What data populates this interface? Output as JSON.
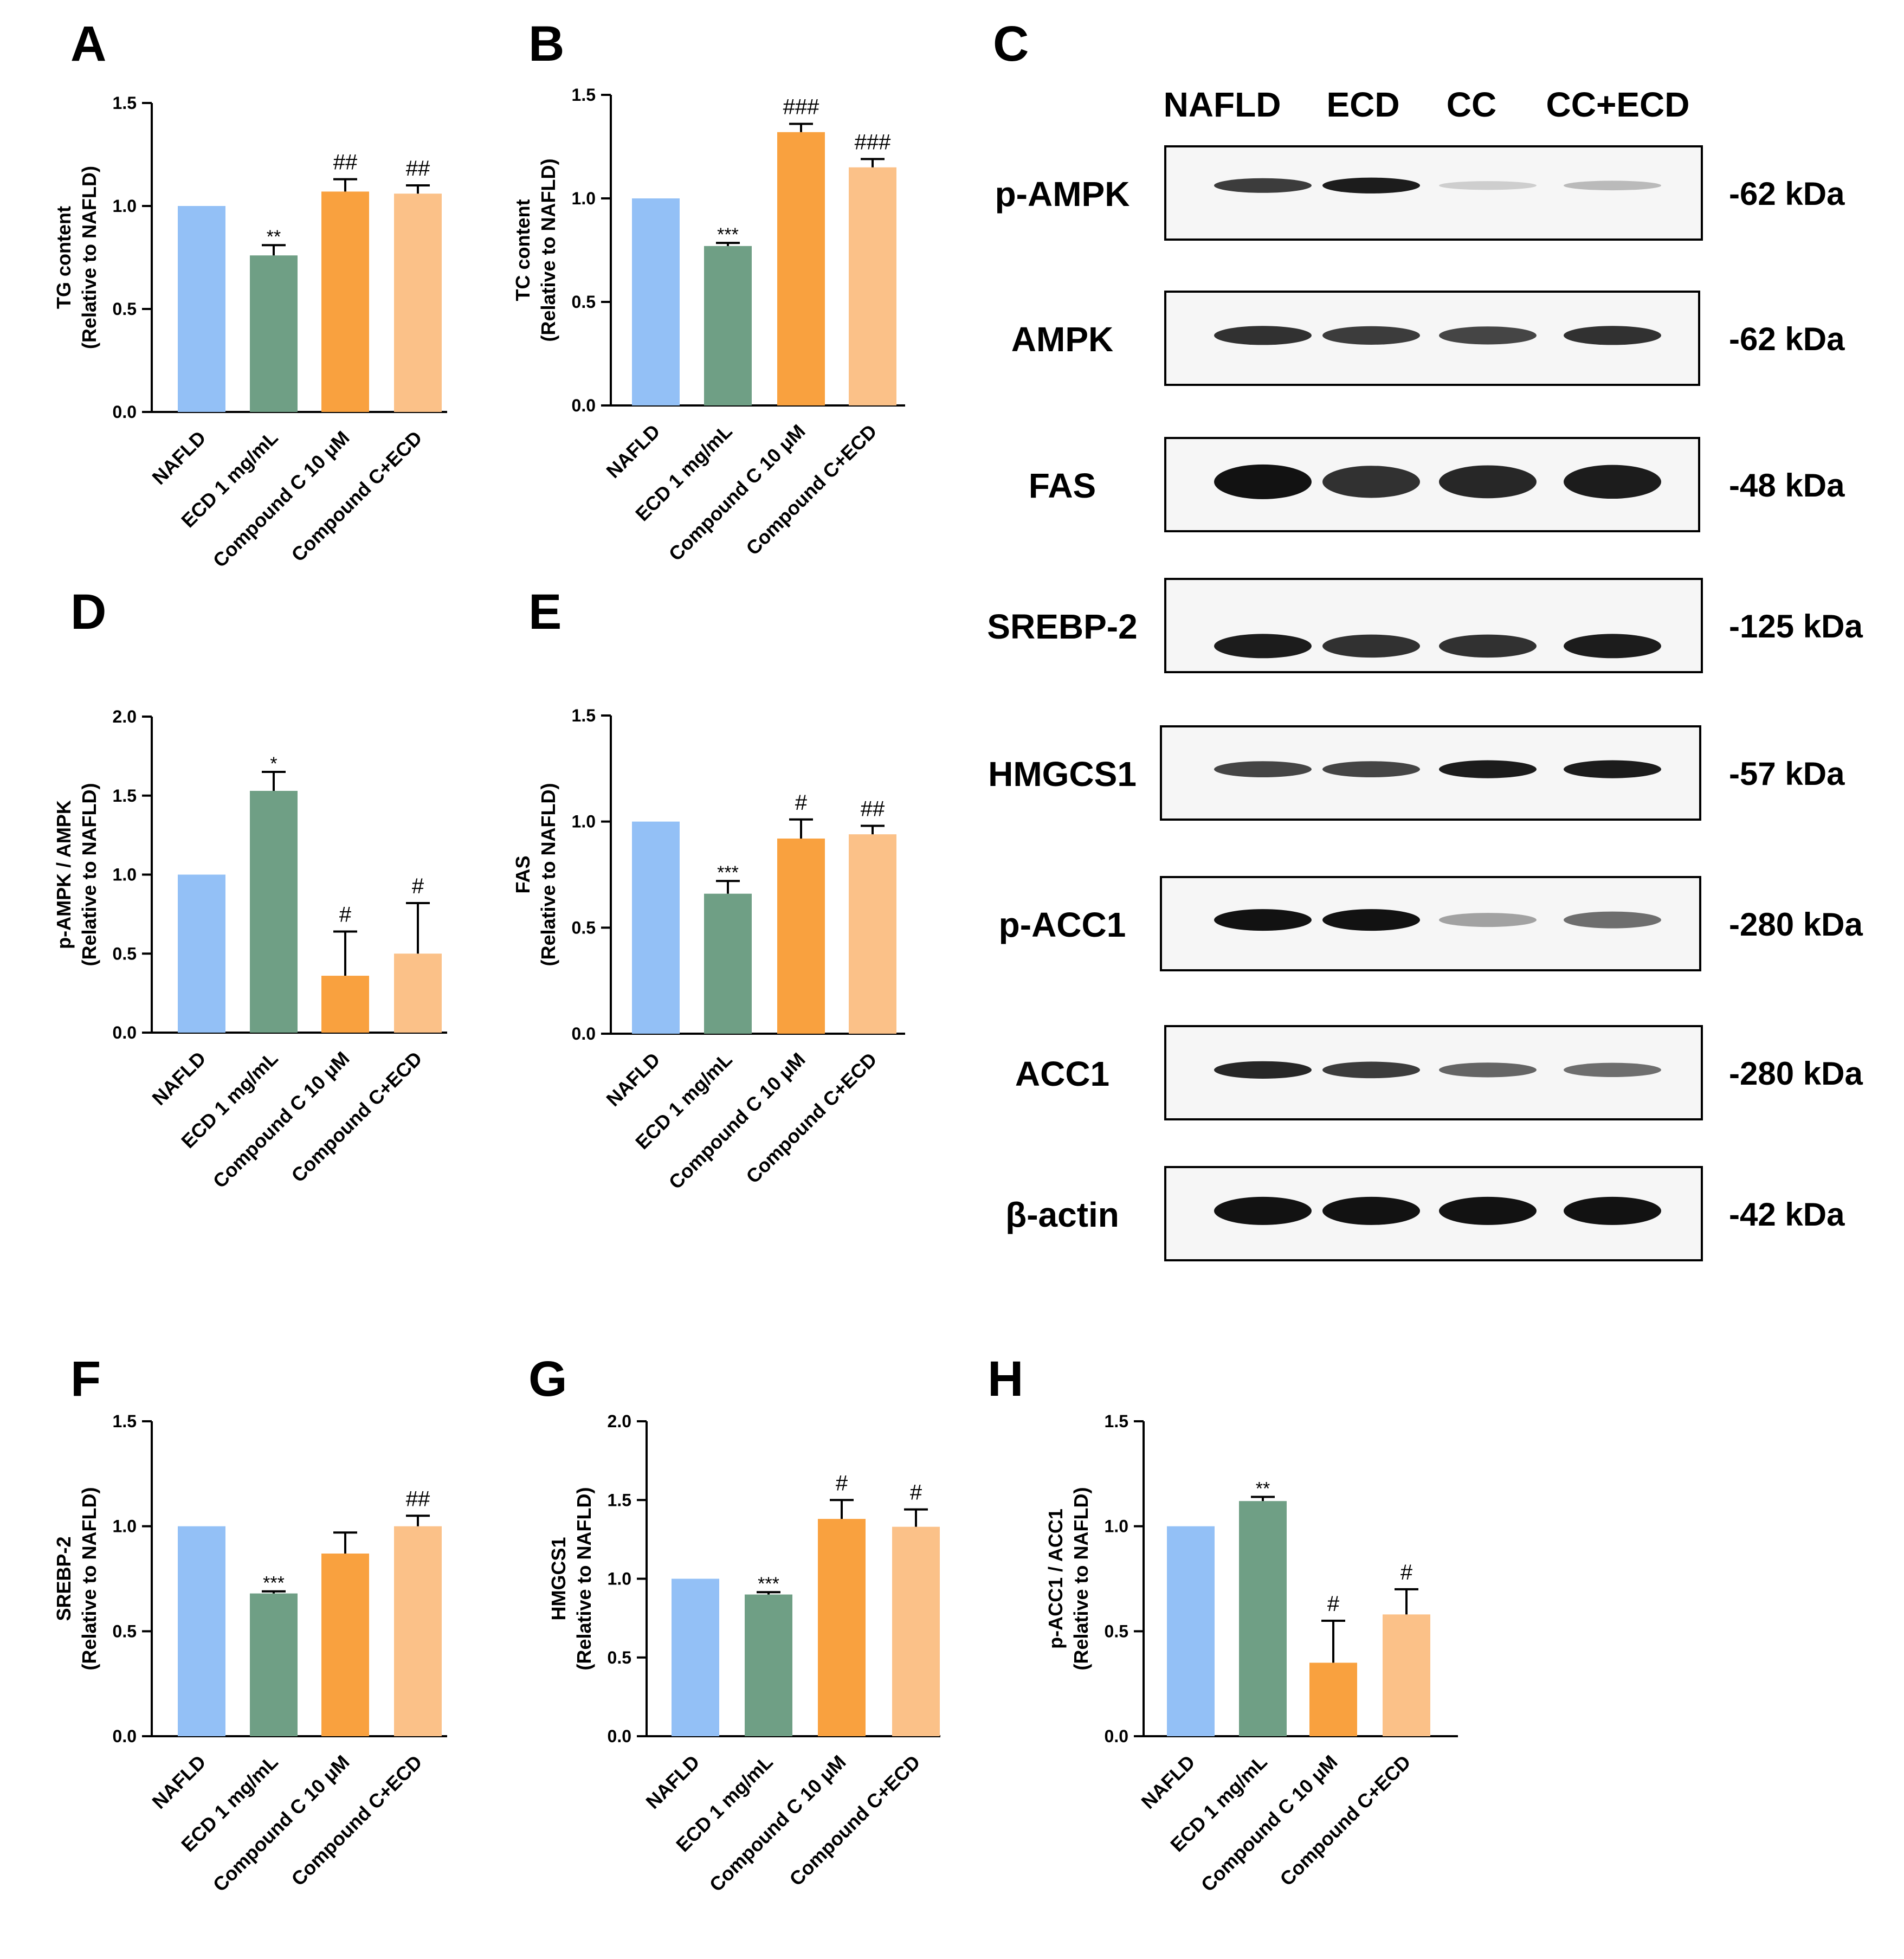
{
  "panel_letters": [
    "A",
    "B",
    "C",
    "D",
    "E",
    "F",
    "G",
    "H"
  ],
  "colors": {
    "nafld": "#93c0f6",
    "ecd": "#6f9f85",
    "cc": "#f9a13f",
    "cc_ecd": "#fbc188",
    "axis": "#000000",
    "blot_bg": "#f6f6f6",
    "band": "#121212"
  },
  "chart_data": [
    {
      "panel": "A",
      "type": "bar",
      "categories": [
        "NAFLD",
        "ECD 1 mg/mL",
        "Compound C 10 μM",
        "Compound C+ECD"
      ],
      "values": [
        1.0,
        0.76,
        1.07,
        1.06
      ],
      "errors": [
        0,
        0.05,
        0.06,
        0.04
      ],
      "annotations": [
        "",
        "**",
        "##",
        "##"
      ],
      "ylabel": [
        "TG content",
        "(Relative to NAFLD)"
      ],
      "ylim": [
        0,
        1.5
      ],
      "yticks": [
        "0.0",
        "0.5",
        "1.0",
        "1.5"
      ]
    },
    {
      "panel": "B",
      "type": "bar",
      "categories": [
        "NAFLD",
        "ECD 1 mg/mL",
        "Compound C 10 μM",
        "Compound C+ECD"
      ],
      "values": [
        1.0,
        0.77,
        1.32,
        1.15
      ],
      "errors": [
        0,
        0.015,
        0.04,
        0.04
      ],
      "annotations": [
        "",
        "***",
        "###",
        "###"
      ],
      "ylabel": [
        "TC content",
        "(Relative to NAFLD)"
      ],
      "ylim": [
        0,
        1.5
      ],
      "yticks": [
        "0.0",
        "0.5",
        "1.0",
        "1.5"
      ]
    },
    {
      "panel": "D",
      "type": "bar",
      "categories": [
        "NAFLD",
        "ECD 1 mg/mL",
        "Compound C 10 μM",
        "Compound C+ECD"
      ],
      "values": [
        1.0,
        1.53,
        0.36,
        0.5
      ],
      "errors": [
        0,
        0.12,
        0.28,
        0.32
      ],
      "annotations": [
        "",
        "*",
        "#",
        "#"
      ],
      "ylabel": [
        "p-AMPK / AMPK",
        "(Relative to NAFLD)"
      ],
      "ylim": [
        0,
        2.0
      ],
      "yticks": [
        "0.0",
        "0.5",
        "1.0",
        "1.5",
        "2.0"
      ]
    },
    {
      "panel": "E",
      "type": "bar",
      "categories": [
        "NAFLD",
        "ECD 1 mg/mL",
        "Compound C 10 μM",
        "Compound C+ECD"
      ],
      "values": [
        1.0,
        0.66,
        0.92,
        0.94
      ],
      "errors": [
        0,
        0.06,
        0.09,
        0.04
      ],
      "annotations": [
        "",
        "***",
        "#",
        "##"
      ],
      "ylabel": [
        "FAS",
        "(Relative to NAFLD)"
      ],
      "ylim": [
        0,
        1.5
      ],
      "yticks": [
        "0.0",
        "0.5",
        "1.0",
        "1.5"
      ]
    },
    {
      "panel": "F",
      "type": "bar",
      "categories": [
        "NAFLD",
        "ECD 1 mg/mL",
        "Compound C 10 μM",
        "Compound C+ECD"
      ],
      "values": [
        1.0,
        0.68,
        0.87,
        1.0
      ],
      "errors": [
        0,
        0.01,
        0.1,
        0.05
      ],
      "annotations": [
        "",
        "***",
        "",
        "##"
      ],
      "ylabel": [
        "SREBP-2",
        "(Relative to NAFLD)"
      ],
      "ylim": [
        0,
        1.5
      ],
      "yticks": [
        "0.0",
        "0.5",
        "1.0",
        "1.5"
      ]
    },
    {
      "panel": "G",
      "type": "bar",
      "categories": [
        "NAFLD",
        "ECD 1 mg/mL",
        "Compound C 10 μM",
        "Compound C+ECD"
      ],
      "values": [
        1.0,
        0.9,
        1.38,
        1.33
      ],
      "errors": [
        0,
        0.015,
        0.12,
        0.11
      ],
      "annotations": [
        "",
        "***",
        "#",
        "#"
      ],
      "ylabel": [
        "HMGCS1",
        "(Relative to NAFLD)"
      ],
      "ylim": [
        0,
        2.0
      ],
      "yticks": [
        "0.0",
        "0.5",
        "1.0",
        "1.5",
        "2.0"
      ]
    },
    {
      "panel": "H",
      "type": "bar",
      "categories": [
        "NAFLD",
        "ECD 1 mg/mL",
        "Compound C 10 μM",
        "Compound C+ECD"
      ],
      "values": [
        1.0,
        1.12,
        0.35,
        0.58
      ],
      "errors": [
        0,
        0.02,
        0.2,
        0.12
      ],
      "annotations": [
        "",
        "**",
        "#",
        "#"
      ],
      "ylabel": [
        "p-ACC1 / ACC1",
        "(Relative to NAFLD)"
      ],
      "ylim": [
        0,
        1.5
      ],
      "yticks": [
        "0.0",
        "0.5",
        "1.0",
        "1.5"
      ]
    }
  ],
  "western_blot": {
    "lanes": [
      "NAFLD",
      "ECD",
      "CC",
      "CC+ECD"
    ],
    "rows": [
      {
        "protein": "p-AMPK",
        "size": "-62 kDa",
        "intensity": [
          0.8,
          0.95,
          0.08,
          0.18
        ]
      },
      {
        "protein": "AMPK",
        "size": "-62 kDa",
        "intensity": [
          0.85,
          0.8,
          0.75,
          0.85
        ]
      },
      {
        "protein": "FAS",
        "size": "-48 kDa",
        "intensity": [
          1.0,
          0.85,
          0.9,
          0.95
        ]
      },
      {
        "protein": "SREBP-2",
        "size": "-125 kDa",
        "intensity": [
          0.95,
          0.85,
          0.85,
          0.95
        ]
      },
      {
        "protein": "HMGCS1",
        "size": "-57 kDa",
        "intensity": [
          0.75,
          0.75,
          0.95,
          0.95
        ]
      },
      {
        "protein": "p-ACC1",
        "size": "-280 kDa",
        "intensity": [
          1.0,
          1.0,
          0.3,
          0.55
        ]
      },
      {
        "protein": "ACC1",
        "size": "-280 kDa",
        "intensity": [
          0.9,
          0.8,
          0.6,
          0.55
        ]
      },
      {
        "protein": "β-actin",
        "size": "-42 kDa",
        "intensity": [
          1.0,
          1.0,
          1.0,
          1.0
        ]
      }
    ]
  }
}
